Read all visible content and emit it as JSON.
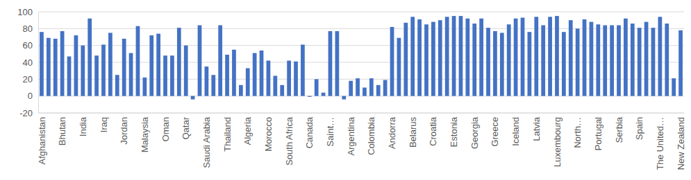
{
  "chart_data": {
    "type": "bar",
    "categories": [
      "Afghanistan",
      null,
      null,
      "Bhutan",
      null,
      null,
      "India",
      null,
      null,
      "Iraq",
      null,
      null,
      "Jordan",
      null,
      null,
      "Malaysia",
      null,
      null,
      "Oman",
      null,
      null,
      "Qatar",
      null,
      null,
      "Saudi Arabia",
      null,
      null,
      "Thailand",
      null,
      null,
      "Algeria",
      null,
      null,
      "Morocco",
      null,
      null,
      "South Africa",
      null,
      null,
      "Canada",
      null,
      null,
      "Saint…",
      null,
      null,
      "Argentina",
      null,
      null,
      "Colombia",
      null,
      null,
      "Andorra",
      null,
      null,
      "Belarus",
      null,
      null,
      "Croatia",
      null,
      null,
      "Estonia",
      null,
      null,
      "Georgia",
      null,
      null,
      "Greece",
      null,
      null,
      "Iceland",
      null,
      null,
      "Latvia",
      null,
      null,
      "Luxembourg",
      null,
      null,
      "North…",
      null,
      null,
      "Portugal",
      null,
      null,
      "Serbia",
      null,
      null,
      "Spain",
      null,
      null,
      "The United…",
      null,
      null,
      "New Zealand"
    ],
    "values": [
      76,
      69,
      68,
      77,
      47,
      72,
      60,
      92,
      48,
      61,
      75,
      25,
      68,
      51,
      83,
      22,
      72,
      74,
      48,
      48,
      81,
      60,
      -4,
      84,
      35,
      25,
      84,
      49,
      55,
      13,
      33,
      51,
      54,
      42,
      24,
      13,
      42,
      41,
      61,
      -1,
      20,
      4,
      77,
      77,
      -4,
      18,
      21,
      10,
      21,
      13,
      19,
      82,
      69,
      87,
      94,
      91,
      85,
      88,
      90,
      94,
      95,
      95,
      92,
      86,
      92,
      81,
      77,
      75,
      85,
      92,
      93,
      76,
      94,
      84,
      94,
      95,
      76,
      90,
      80,
      91,
      88,
      85,
      84,
      84,
      84,
      92,
      86,
      81,
      88,
      81,
      94,
      86,
      21,
      78
    ],
    "color": "#4472c4",
    "ylim": [
      -20,
      100
    ],
    "yticks": [
      -20,
      0,
      20,
      40,
      60,
      80,
      100
    ],
    "grid": true
  }
}
